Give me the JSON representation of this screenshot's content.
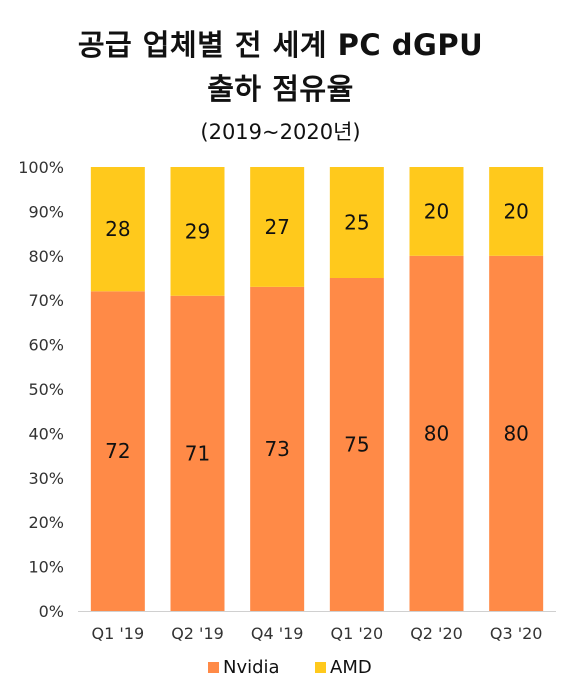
{
  "title_line1": "공급 업체별 전 세계 PC dGPU",
  "title_line2": "출하 점유율",
  "subtitle": "(2019~2020년)",
  "chart_data": {
    "type": "bar",
    "stacked": true,
    "categories": [
      "Q1 '19",
      "Q2 '19",
      "Q4 '19",
      "Q1 '20",
      "Q2 '20",
      "Q3 '20"
    ],
    "series": [
      {
        "name": "Nvidia",
        "values": [
          72,
          71,
          73,
          75,
          80,
          80
        ],
        "color": "#ff8a47"
      },
      {
        "name": "AMD",
        "values": [
          28,
          29,
          27,
          25,
          20,
          20
        ],
        "color": "#ffc91c"
      }
    ],
    "ylim": [
      0,
      100
    ],
    "yticks": [
      "0%",
      "10%",
      "20%",
      "30%",
      "40%",
      "50%",
      "60%",
      "70%",
      "80%",
      "90%",
      "100%"
    ],
    "legend_position": "bottom",
    "grid": false
  }
}
